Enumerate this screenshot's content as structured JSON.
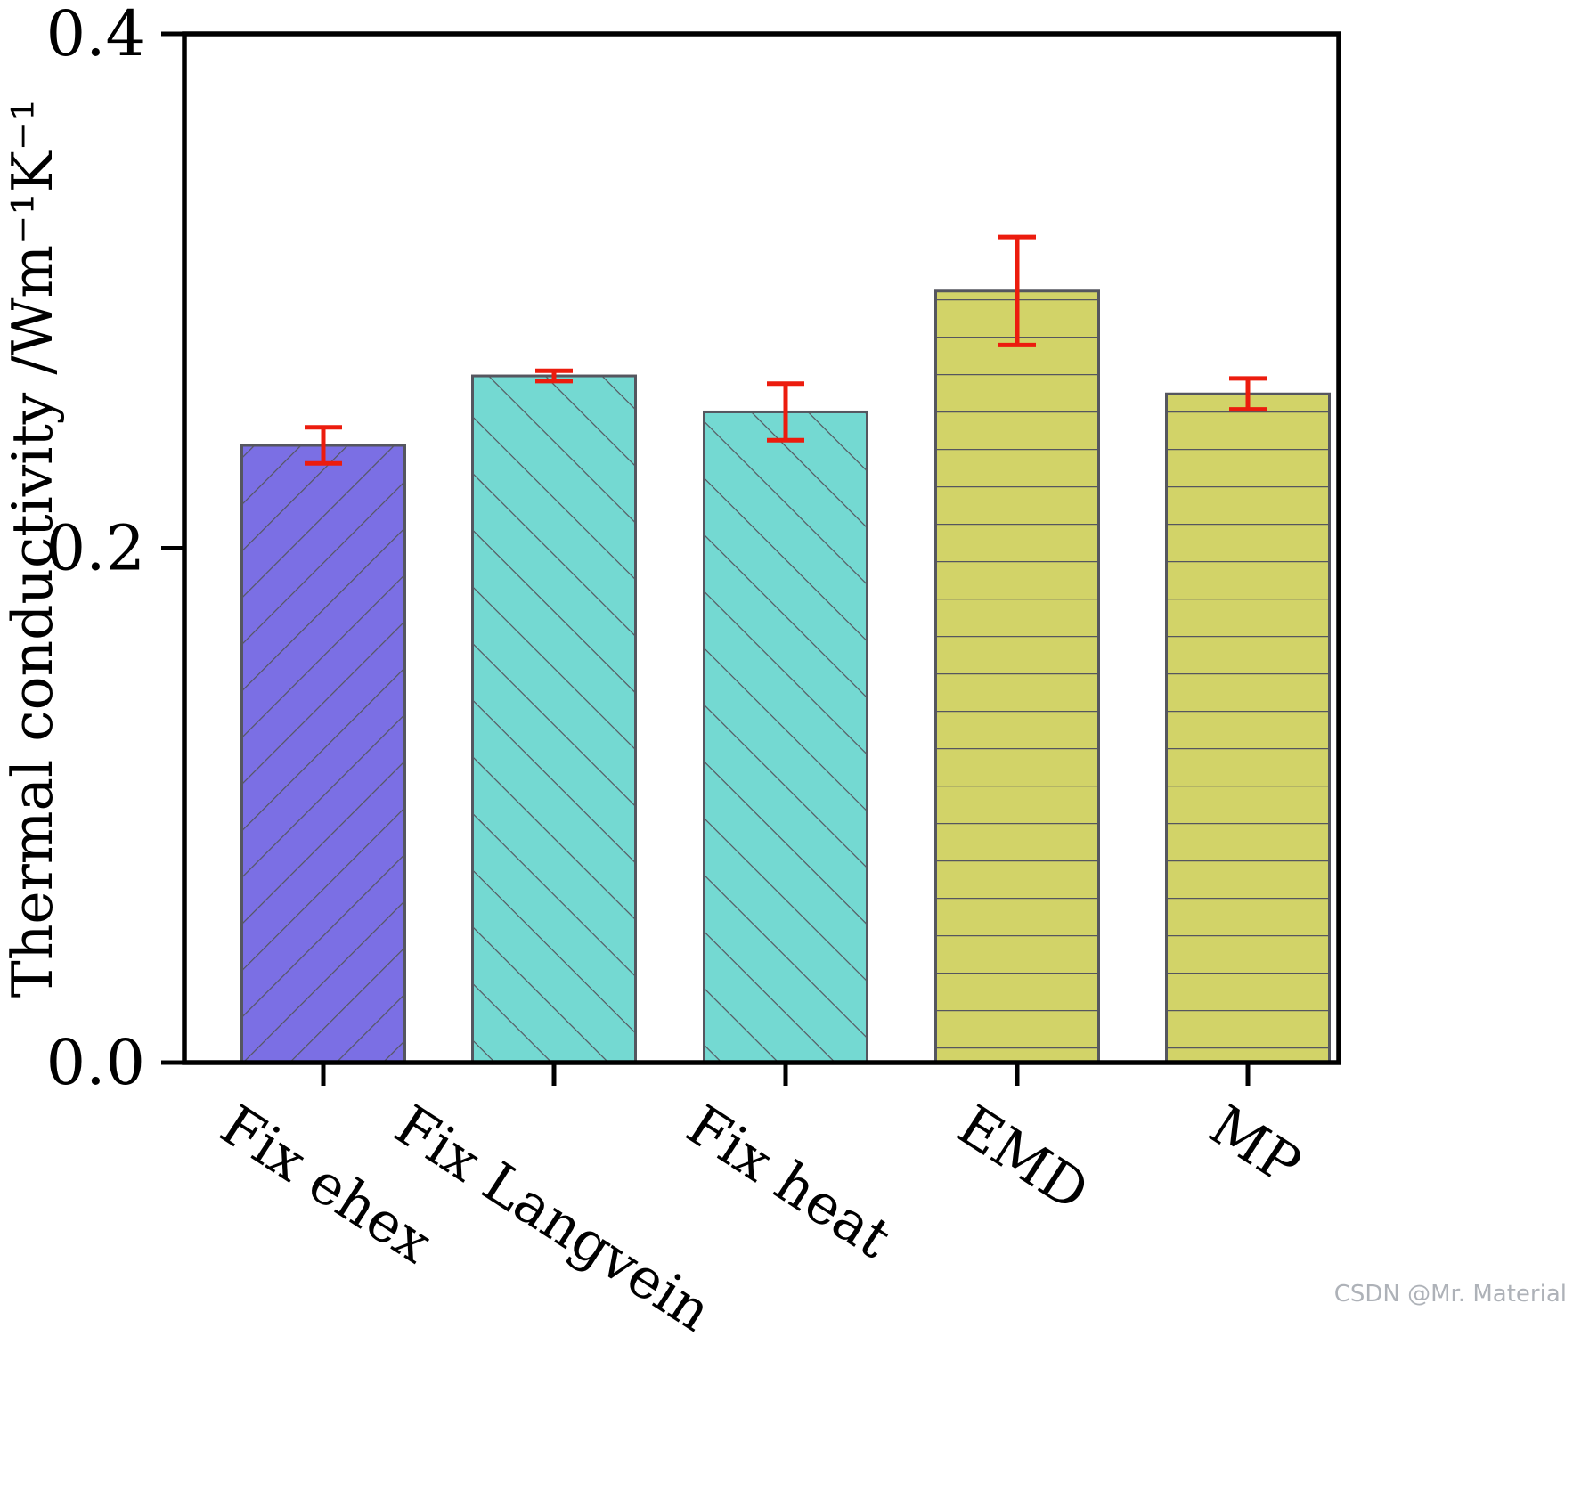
{
  "chart_data": {
    "type": "bar",
    "title": "",
    "categories": [
      "Fix ehex",
      "Fix Langvein",
      "Fix heat",
      "EMD",
      "MP"
    ],
    "values": [
      0.24,
      0.267,
      0.253,
      0.3,
      0.26
    ],
    "errors": [
      0.007,
      0.002,
      0.011,
      0.021,
      0.006
    ],
    "bar_colors": [
      "#7b6fe4",
      "#74d9d2",
      "#74d9d2",
      "#d2d368",
      "#d2d368"
    ],
    "hatches": [
      "/",
      "\\",
      "\\",
      "-",
      "-"
    ],
    "edge_color": "#55565f",
    "error_color": "#ec1c0e",
    "xlabel": "",
    "ylabel": "Thermal conductivity /Wm⁻¹K⁻¹",
    "yticks": [
      0.0,
      0.2,
      0.4
    ],
    "ylim": [
      0,
      0.4
    ],
    "grid": false,
    "legend_position": "none"
  },
  "watermark": {
    "text": "CSDN @Mr. Material"
  }
}
